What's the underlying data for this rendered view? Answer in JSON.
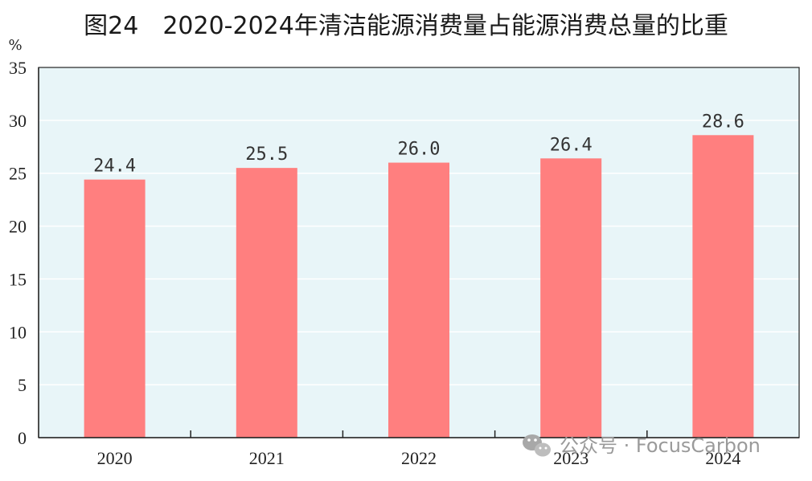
{
  "chart_data": {
    "type": "bar",
    "title": "图24　2020-2024年清洁能源消费量占能源消费总量的比重",
    "ylabel": "%",
    "xlabel": "",
    "categories": [
      "2020",
      "2021",
      "2022",
      "2023",
      "2024"
    ],
    "values": [
      24.4,
      25.5,
      26.0,
      26.4,
      28.6
    ],
    "value_labels": [
      "24.4",
      "25.5",
      "26.0",
      "26.4",
      "28.6"
    ],
    "ylim": [
      0,
      35
    ],
    "yticks": [
      0,
      5,
      10,
      15,
      20,
      25,
      30,
      35
    ],
    "ytick_labels": [
      "0",
      "5",
      "10",
      "15",
      "20",
      "25",
      "30",
      "35"
    ],
    "grid": true,
    "legend": "none",
    "colors": {
      "bar": "#ff7f7f",
      "plot_bg": "#e8f5f8",
      "grid": "#ffffff",
      "axis": "#222222"
    }
  },
  "watermark": {
    "icon": "wechat-icon",
    "text": "公众号 · FocusCarbon"
  }
}
